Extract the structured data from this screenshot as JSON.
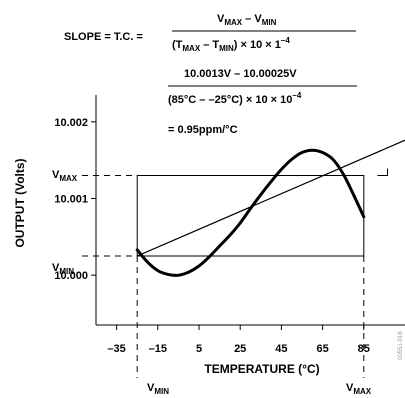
{
  "chart_data": {
    "type": "line",
    "title": "",
    "xlabel": "TEMPERATURE (°C)",
    "ylabel": "OUTPUT (Volts)",
    "x_ticks": [
      -35,
      -15,
      5,
      25,
      45,
      65,
      85
    ],
    "y_ticks": [
      10.0,
      10.001,
      10.002
    ],
    "y_tick_labels": [
      "10.000",
      "10.001",
      "10.002"
    ],
    "xlim": [
      -45,
      105
    ],
    "ylim": [
      9.99935,
      10.00235
    ],
    "grid": false,
    "series": [
      {
        "x": [
          -25,
          -20,
          -15,
          -10,
          -5,
          0,
          5,
          10,
          15,
          20,
          25,
          30,
          35,
          40,
          45,
          50,
          55,
          60,
          65,
          70,
          75,
          80,
          85
        ],
        "y": [
          10.00033,
          10.00017,
          10.00006,
          10.00001,
          10.0,
          10.00004,
          10.00012,
          10.00024,
          10.00038,
          10.00052,
          10.00068,
          10.00087,
          10.00105,
          10.00122,
          10.00138,
          10.00151,
          10.0016,
          10.00163,
          10.0016,
          10.00151,
          10.00132,
          10.00105,
          10.00076
        ]
      }
    ],
    "slope_line": {
      "x": [
        -25,
        105
      ],
      "y": [
        10.00025,
        10.00176
      ]
    },
    "box": {
      "x": [
        -25,
        85
      ],
      "y": [
        10.00025,
        10.0013
      ]
    },
    "ref_labels": {
      "vmax": "V",
      "vmax_sub": "MAX",
      "vmin": "V",
      "vmin_sub": "MIN"
    },
    "formula": {
      "lhs": "SLOPE = T.C. =",
      "num1": "V",
      "num1_sub": "MAX",
      "num1_mid": " – V",
      "num1_sub2": "MIN",
      "den1_a": "(T",
      "den1_sub": "MAX",
      "den1_mid": " – T",
      "den1_sub2": "MIN",
      "den1_tail": ") × 10 × 1",
      "den1_sup": "–4",
      "num2": "10.0013V – 10.00025V",
      "den2": "(85°C – –25°C) × 10 × 10",
      "den2_sup": "–4",
      "result": "= 0.95ppm/°C"
    },
    "watermark": "00551-016"
  }
}
